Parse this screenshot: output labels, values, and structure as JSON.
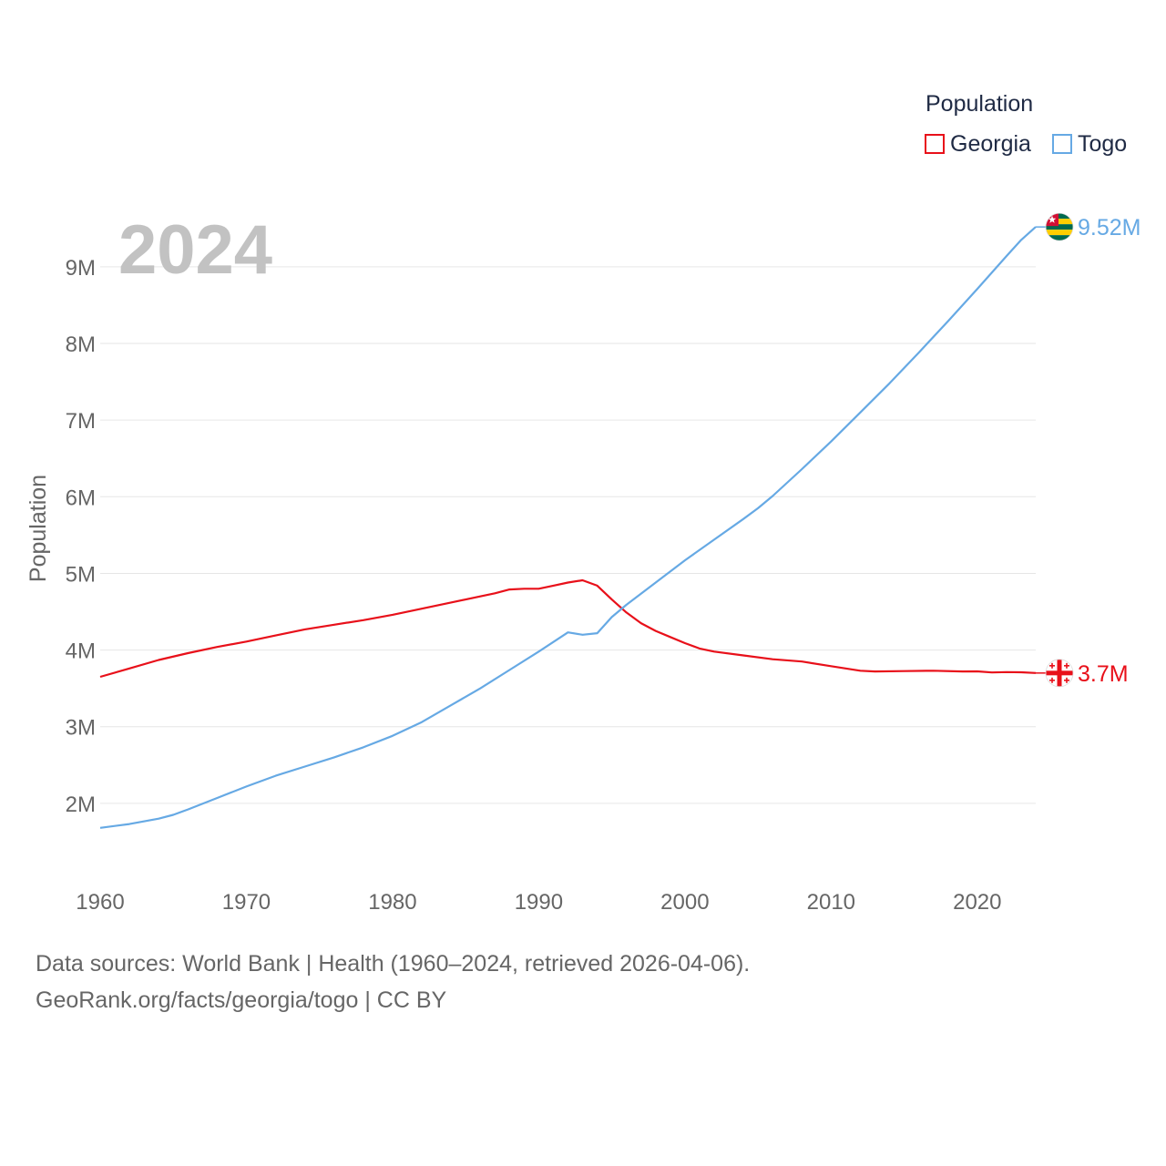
{
  "legend": {
    "title": "Population",
    "items": [
      {
        "name": "Georgia",
        "color": "#e8101a"
      },
      {
        "name": "Togo",
        "color": "#66a9e4"
      }
    ]
  },
  "footer": {
    "line1": "Data sources: World Bank | Health (1960–2024, retrieved 2026-04-06).",
    "line2": "GeoRank.org/facts/georgia/togo | CC BY"
  },
  "chart_data": {
    "type": "line",
    "year_label": "2024",
    "title": "Population",
    "xlabel": "",
    "ylabel": "Population",
    "xlim": [
      1960,
      2024
    ],
    "ylim": [
      1000000,
      9700000
    ],
    "x_ticks": [
      1960,
      1970,
      1980,
      1990,
      2000,
      2010,
      2020
    ],
    "y_ticks": [
      {
        "value": 2000000,
        "label": "2M"
      },
      {
        "value": 3000000,
        "label": "3M"
      },
      {
        "value": 4000000,
        "label": "4M"
      },
      {
        "value": 5000000,
        "label": "5M"
      },
      {
        "value": 6000000,
        "label": "6M"
      },
      {
        "value": 7000000,
        "label": "7M"
      },
      {
        "value": 8000000,
        "label": "8M"
      },
      {
        "value": 9000000,
        "label": "9M"
      }
    ],
    "grid": true,
    "legend_position": "top-right",
    "series": [
      {
        "name": "Georgia",
        "color": "#e8101a",
        "end_label": "3.7M",
        "flag_icon": "georgia-flag-icon",
        "points": [
          [
            1960,
            3650000
          ],
          [
            1962,
            3760000
          ],
          [
            1964,
            3870000
          ],
          [
            1966,
            3960000
          ],
          [
            1968,
            4040000
          ],
          [
            1970,
            4110000
          ],
          [
            1972,
            4190000
          ],
          [
            1974,
            4270000
          ],
          [
            1976,
            4330000
          ],
          [
            1978,
            4390000
          ],
          [
            1980,
            4460000
          ],
          [
            1982,
            4540000
          ],
          [
            1984,
            4620000
          ],
          [
            1986,
            4700000
          ],
          [
            1987,
            4740000
          ],
          [
            1988,
            4790000
          ],
          [
            1989,
            4800000
          ],
          [
            1990,
            4800000
          ],
          [
            1991,
            4840000
          ],
          [
            1992,
            4880000
          ],
          [
            1993,
            4910000
          ],
          [
            1994,
            4840000
          ],
          [
            1995,
            4660000
          ],
          [
            1996,
            4490000
          ],
          [
            1997,
            4350000
          ],
          [
            1998,
            4250000
          ],
          [
            1999,
            4170000
          ],
          [
            2000,
            4090000
          ],
          [
            2001,
            4020000
          ],
          [
            2002,
            3980000
          ],
          [
            2004,
            3930000
          ],
          [
            2006,
            3880000
          ],
          [
            2008,
            3850000
          ],
          [
            2010,
            3790000
          ],
          [
            2012,
            3730000
          ],
          [
            2013,
            3720000
          ],
          [
            2015,
            3725000
          ],
          [
            2017,
            3730000
          ],
          [
            2019,
            3720000
          ],
          [
            2020,
            3722000
          ],
          [
            2021,
            3708000
          ],
          [
            2022,
            3712000
          ],
          [
            2023,
            3710000
          ],
          [
            2024,
            3700000
          ]
        ]
      },
      {
        "name": "Togo",
        "color": "#66a9e4",
        "end_label": "9.52M",
        "flag_icon": "togo-flag-icon",
        "points": [
          [
            1960,
            1680000
          ],
          [
            1962,
            1730000
          ],
          [
            1964,
            1800000
          ],
          [
            1965,
            1850000
          ],
          [
            1966,
            1920000
          ],
          [
            1968,
            2070000
          ],
          [
            1970,
            2220000
          ],
          [
            1972,
            2360000
          ],
          [
            1974,
            2480000
          ],
          [
            1976,
            2600000
          ],
          [
            1978,
            2730000
          ],
          [
            1980,
            2880000
          ],
          [
            1982,
            3060000
          ],
          [
            1984,
            3280000
          ],
          [
            1986,
            3500000
          ],
          [
            1988,
            3740000
          ],
          [
            1990,
            3980000
          ],
          [
            1992,
            4230000
          ],
          [
            1993,
            4200000
          ],
          [
            1994,
            4220000
          ],
          [
            1995,
            4430000
          ],
          [
            1996,
            4590000
          ],
          [
            1998,
            4880000
          ],
          [
            2000,
            5170000
          ],
          [
            2002,
            5440000
          ],
          [
            2004,
            5710000
          ],
          [
            2005,
            5850000
          ],
          [
            2006,
            6010000
          ],
          [
            2008,
            6360000
          ],
          [
            2010,
            6720000
          ],
          [
            2012,
            7100000
          ],
          [
            2014,
            7480000
          ],
          [
            2016,
            7880000
          ],
          [
            2018,
            8290000
          ],
          [
            2020,
            8710000
          ],
          [
            2022,
            9140000
          ],
          [
            2023,
            9350000
          ],
          [
            2024,
            9520000
          ]
        ]
      }
    ]
  }
}
